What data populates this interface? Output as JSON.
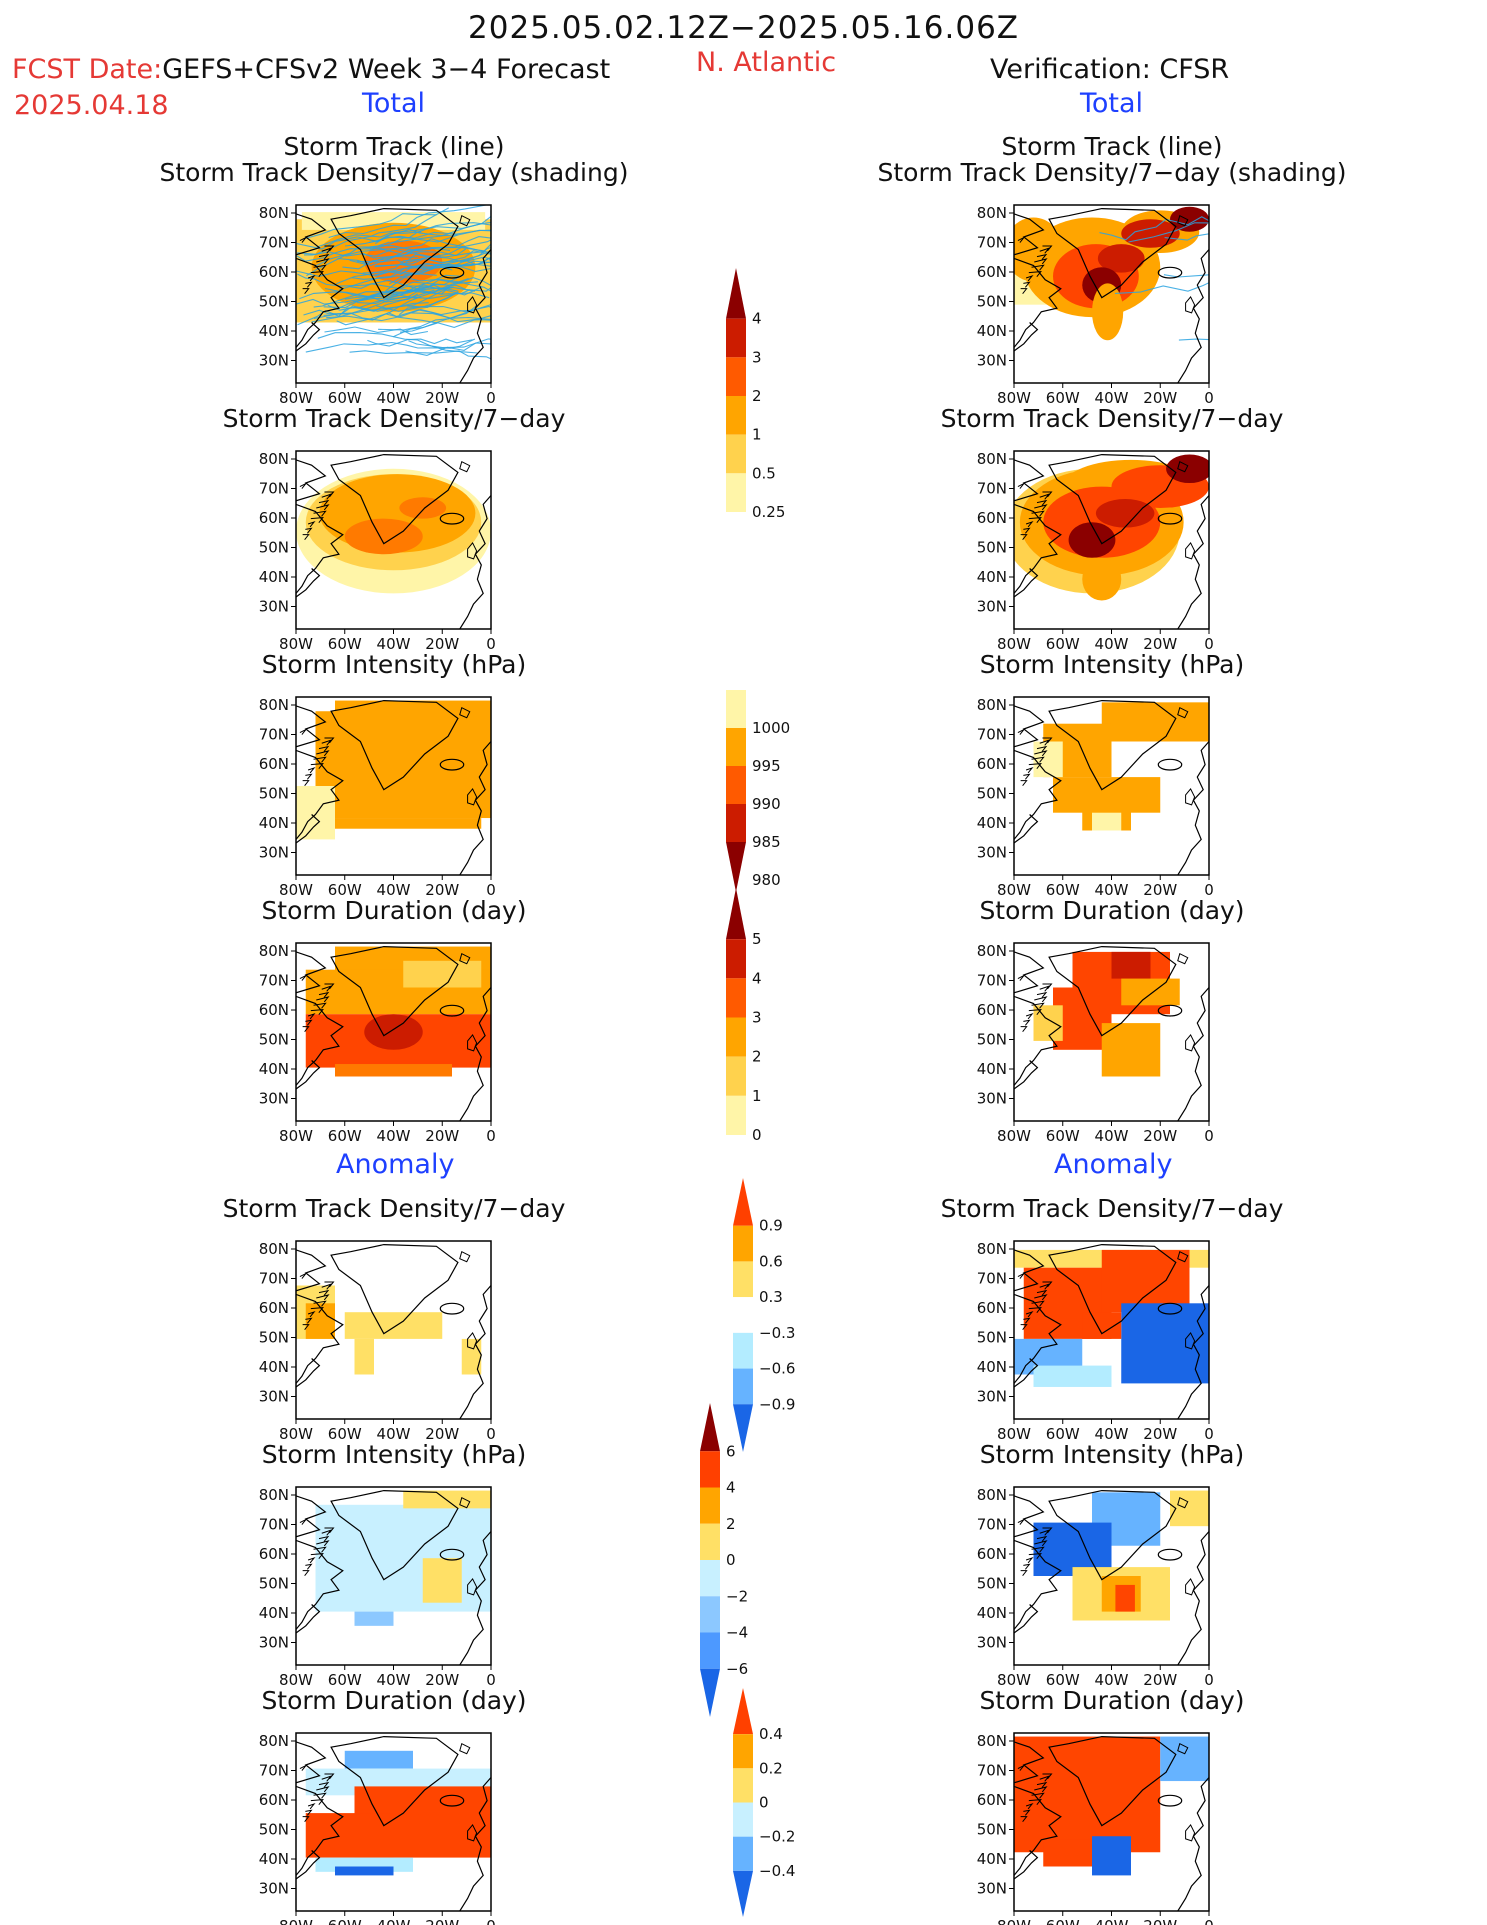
{
  "header": {
    "period": "2025.05.02.12Z−2025.05.16.06Z",
    "fcst_date_label": "FCST Date:",
    "fcst_model": "GEFS+CFSv2 Week 3−4 Forecast",
    "fcst_date_value": "2025.04.18",
    "region": "N. Atlantic",
    "verification": "Verification: CFSR",
    "total_left": "Total",
    "total_right": "Total",
    "anomaly_left": "Anomaly",
    "anomaly_right": "Anomaly"
  },
  "panel_titles": {
    "track_line": "Storm Track (line)",
    "track_shading": "Storm Track Density/7−day (shading)",
    "density": "Storm Track Density/7−day",
    "intensity": "Storm Intensity (hPa)",
    "duration": "Storm Duration (day)"
  },
  "axes": {
    "lon_ticks": [
      "80W",
      "60W",
      "40W",
      "20W",
      "0"
    ],
    "lat_ticks": [
      "80N",
      "70N",
      "60N",
      "50N",
      "40N",
      "30N"
    ]
  },
  "colorbars": {
    "density_total": {
      "labels": [
        "4",
        "3",
        "2",
        "1",
        "0.5",
        "0.25"
      ],
      "colors": [
        "#8b0000",
        "#cc1c00",
        "#ff5a00",
        "#ffa500",
        "#ffd24d",
        "#fff5a8"
      ]
    },
    "intensity_total": {
      "labels": [
        "1000",
        "995",
        "990",
        "985",
        "980"
      ],
      "colors": [
        "#fff5a8",
        "#ffa500",
        "#ff5a00",
        "#cc1c00",
        "#8b0000"
      ]
    },
    "duration_total": {
      "labels": [
        "5",
        "4",
        "3",
        "2",
        "1",
        "0"
      ],
      "colors": [
        "#8b0000",
        "#cc1c00",
        "#ff5a00",
        "#ffa500",
        "#ffd24d",
        "#fff5a8"
      ]
    },
    "density_anom": {
      "labels": [
        "0.9",
        "0.6",
        "0.3",
        "−0.3",
        "−0.6",
        "−0.9"
      ],
      "colors": [
        "#ff4000",
        "#ffa500",
        "#ffe066",
        "#ffffff",
        "#b3ecff",
        "#66b3ff",
        "#1a66e6"
      ]
    },
    "intensity_anom": {
      "labels": [
        "6",
        "4",
        "2",
        "0",
        "−2",
        "−4",
        "−6"
      ],
      "colors": [
        "#8b0000",
        "#ff4000",
        "#ffa500",
        "#ffe066",
        "#c8f0ff",
        "#8cc8ff",
        "#4d99ff",
        "#1a66e6"
      ]
    },
    "duration_anom": {
      "labels": [
        "0.4",
        "0.2",
        "0",
        "−0.2",
        "−0.4"
      ],
      "colors": [
        "#ff4000",
        "#ffa500",
        "#ffe066",
        "#c8f0ff",
        "#66b3ff",
        "#1a66e6"
      ]
    }
  },
  "colors": {
    "coast": "#000000",
    "track_line": "#2aa3e0",
    "title_red": "#e53935",
    "title_blue": "#1e40ff"
  }
}
